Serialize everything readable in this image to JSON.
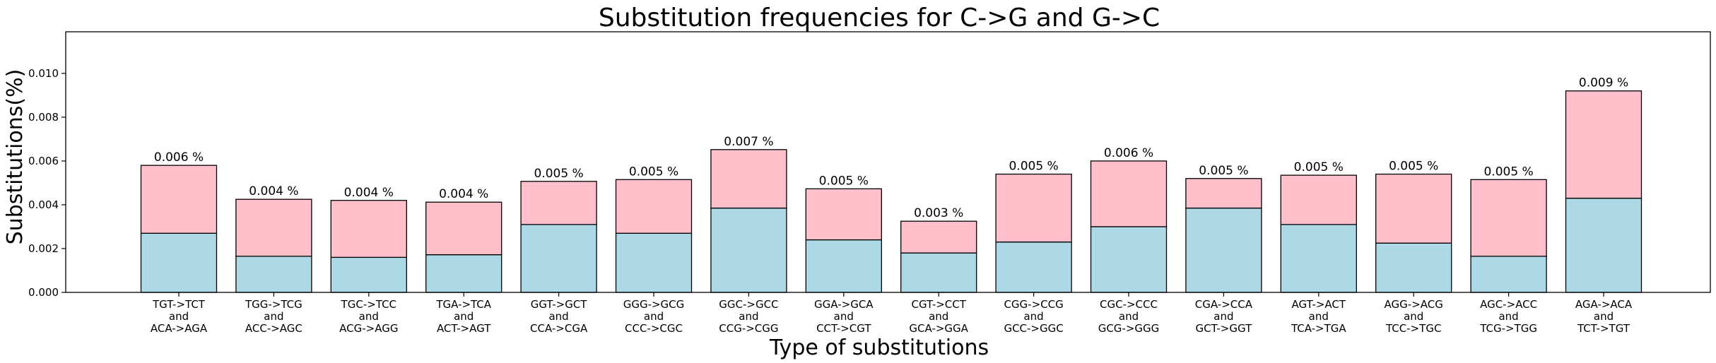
{
  "chart_data": {
    "type": "bar",
    "stacked": true,
    "title": "Substitution frequencies for C->G and G->C",
    "xlabel": "Type of substitutions",
    "ylabel": "Substitutions(%)",
    "ylim": [
      0,
      0.0119
    ],
    "yticks": [
      "0.000",
      "0.002",
      "0.004",
      "0.006",
      "0.008",
      "0.010"
    ],
    "grid": false,
    "categories": [
      [
        "TGT->TCT",
        "and",
        "ACA->AGA"
      ],
      [
        "TGG->TCG",
        "and",
        "ACC->AGC"
      ],
      [
        "TGC->TCC",
        "and",
        "ACG->AGG"
      ],
      [
        "TGA->TCA",
        "and",
        "ACT->AGT"
      ],
      [
        "GGT->GCT",
        "and",
        "CCA->CGA"
      ],
      [
        "GGG->GCG",
        "and",
        "CCC->CGC"
      ],
      [
        "GGC->GCC",
        "and",
        "CCG->CGG"
      ],
      [
        "GGA->GCA",
        "and",
        "CCT->CGT"
      ],
      [
        "CGT->CCT",
        "and",
        "GCA->GGA"
      ],
      [
        "CGG->CCG",
        "and",
        "GCC->GGC"
      ],
      [
        "CGC->CCC",
        "and",
        "GCG->GGG"
      ],
      [
        "CGA->CCA",
        "and",
        "GCT->GGT"
      ],
      [
        "AGT->ACT",
        "and",
        "TCA->TGA"
      ],
      [
        "AGG->ACG",
        "and",
        "TCC->TGC"
      ],
      [
        "AGC->ACC",
        "and",
        "TCG->TGG"
      ],
      [
        "AGA->ACA",
        "and",
        "TCT->TGT"
      ]
    ],
    "series": [
      {
        "color": "#add8e6",
        "values": [
          0.0027,
          0.00165,
          0.0016,
          0.00172,
          0.0031,
          0.0027,
          0.00385,
          0.0024,
          0.0018,
          0.0023,
          0.003,
          0.00385,
          0.0031,
          0.00225,
          0.00165,
          0.0043
        ]
      },
      {
        "color": "#ffc0cb",
        "values": [
          0.0031,
          0.0026,
          0.0026,
          0.0024,
          0.00197,
          0.00245,
          0.00267,
          0.00233,
          0.00145,
          0.0031,
          0.003,
          0.00135,
          0.00225,
          0.00315,
          0.0035,
          0.0049
        ]
      }
    ],
    "data_labels": [
      "0.006 %",
      "0.004 %",
      "0.004 %",
      "0.004 %",
      "0.005 %",
      "0.005 %",
      "0.007 %",
      "0.005 %",
      "0.003 %",
      "0.005 %",
      "0.006 %",
      "0.005 %",
      "0.005 %",
      "0.005 %",
      "0.005 %",
      "0.009 %"
    ]
  }
}
